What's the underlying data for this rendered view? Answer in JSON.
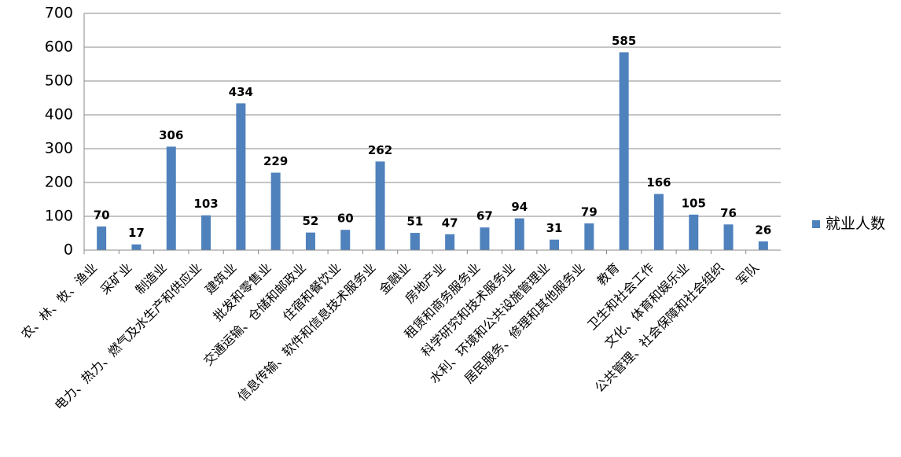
{
  "chart_data": {
    "type": "bar",
    "categories": [
      "农、林、牧、渔业",
      "采矿业",
      "制造业",
      "电力、热力、燃气及水生产和供应业",
      "建筑业",
      "批发和零售业",
      "交通运输、仓储和邮政业",
      "住宿和餐饮业",
      "信息传输、软件和信息技术服务业",
      "金融业",
      "房地产业",
      "租赁和商务服务业",
      "科学研究和技术服务业",
      "水利、环境和公共设施管理业",
      "居民服务、修理和其他服务业",
      "教育",
      "卫生和社会工作",
      "文化、体育和娱乐业",
      "公共管理、社会保障和社会组织",
      "军队"
    ],
    "series": [
      {
        "name": "就业人数",
        "color": "#4f81bd",
        "values": [
          70,
          17,
          306,
          103,
          434,
          229,
          52,
          60,
          262,
          51,
          47,
          67,
          94,
          31,
          79,
          585,
          166,
          105,
          76,
          26
        ]
      }
    ],
    "ylim": [
      0,
      700
    ],
    "yticks": [
      0,
      100,
      200,
      300,
      400,
      500,
      600,
      700
    ],
    "grid": true,
    "legend": "right"
  }
}
